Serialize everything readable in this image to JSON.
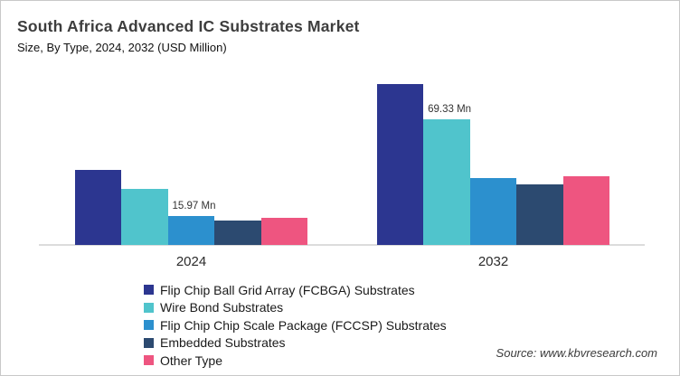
{
  "header": {
    "title": "South Africa Advanced IC Substrates Market",
    "subtitle": "Size, By Type, 2024, 2032 (USD Million)"
  },
  "chart_data": {
    "type": "bar",
    "title": "South Africa Advanced IC Substrates Market",
    "subtitle": "Size, By Type, 2024, 2032 (USD Million)",
    "unit": "USD Million",
    "categories": [
      "2024",
      "2032"
    ],
    "series": [
      {
        "name": "Flip Chip Ball Grid Array (FCBGA) Substrates",
        "color": "#2C3690",
        "values": [
          41.5,
          89.0
        ]
      },
      {
        "name": "Wire Bond Substrates",
        "color": "#50C4CC",
        "values": [
          31.1,
          69.33
        ]
      },
      {
        "name": "Flip Chip Chip Scale Package (FCCSP) Substrates",
        "color": "#2C90CE",
        "values": [
          15.97,
          37.1
        ]
      },
      {
        "name": "Embedded Substrates",
        "color": "#2C4A70",
        "values": [
          13.3,
          33.6
        ]
      },
      {
        "name": "Other Type",
        "color": "#EE5580",
        "values": [
          15.2,
          38.0
        ]
      }
    ],
    "data_labels": [
      {
        "category_index": 0,
        "series_index": 2,
        "text": "15.97 Mn"
      },
      {
        "category_index": 1,
        "series_index": 1,
        "text": "69.33 Mn"
      }
    ],
    "xlabel": "",
    "ylabel": "",
    "ylim": [
      0,
      95
    ],
    "grid": false,
    "legend_position": "bottom-left"
  },
  "footer": {
    "source": "Source: www.kbvresearch.com"
  }
}
